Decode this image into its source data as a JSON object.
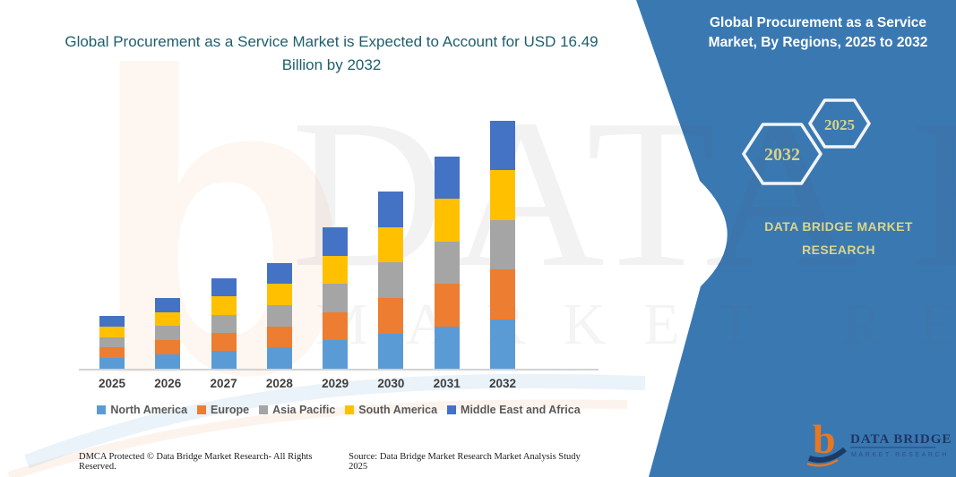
{
  "title": "Global Procurement as a Service Market is Expected to Account for USD 16.49 Billion by 2032",
  "side_panel": {
    "heading": "Global Procurement as a Service Market, By Regions, 2025 to 2032",
    "hexagons": [
      {
        "label": "2032"
      },
      {
        "label": "2025"
      }
    ],
    "brand": "DATA BRIDGE MARKET RESEARCH",
    "bg_color": "#3a78b2",
    "accent_text_color": "#d8d387"
  },
  "watermark": {
    "monogram": "b",
    "line1": "DATA BRIDGE",
    "line2": "MARKET RESEARCH"
  },
  "chart_data": {
    "type": "bar",
    "stacked": true,
    "title": "Global Procurement as a Service Market, By Regions, 2025 to 2032",
    "unit": "USD Billion",
    "categories": [
      "2025",
      "2026",
      "2027",
      "2028",
      "2029",
      "2030",
      "2031",
      "2032"
    ],
    "series": [
      {
        "name": "North America",
        "color": "#5B9BD5",
        "values": [
          0.7,
          0.94,
          1.2,
          1.41,
          1.88,
          2.35,
          2.82,
          3.3
        ]
      },
      {
        "name": "Europe",
        "color": "#ED7D31",
        "values": [
          0.7,
          0.94,
          1.2,
          1.41,
          1.88,
          2.35,
          2.82,
          3.3
        ]
      },
      {
        "name": "Asia Pacific",
        "color": "#A5A5A5",
        "values": [
          0.71,
          0.95,
          1.19,
          1.41,
          1.87,
          2.36,
          2.82,
          3.3
        ]
      },
      {
        "name": "South America",
        "color": "#FFC000",
        "values": [
          0.7,
          0.94,
          1.2,
          1.41,
          1.88,
          2.35,
          2.82,
          3.3
        ]
      },
      {
        "name": "Middle East and Africa",
        "color": "#4472C4",
        "values": [
          0.71,
          0.95,
          1.19,
          1.41,
          1.87,
          2.36,
          2.82,
          3.29
        ]
      }
    ],
    "totals": [
      3.52,
      4.72,
      5.98,
      7.05,
      9.38,
      11.77,
      14.1,
      16.49
    ],
    "ylim": [
      0,
      16.49
    ],
    "grid": false,
    "y_axis_visible": false,
    "legend_position": "bottom"
  },
  "footer": {
    "left": "DMCA Protected © Data Bridge Market Research-  All Rights Reserved.",
    "right": "Source: Data Bridge Market Research  Market Analysis Study 2025"
  },
  "logo": {
    "monogram": "b",
    "text": "DATA BRIDGE",
    "subtext": "MARKET RESEARCH"
  }
}
